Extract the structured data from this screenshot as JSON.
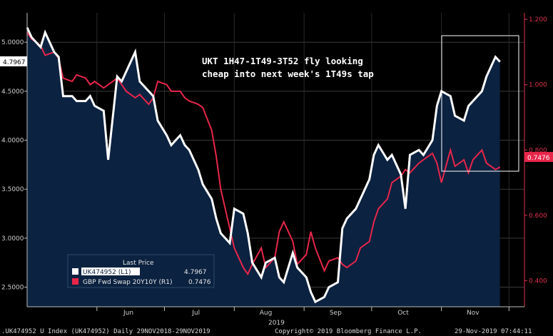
{
  "chart_data": {
    "type": "line",
    "x_ticks": [
      "Jun",
      "Jul",
      "Aug",
      "Sep",
      "Oct",
      "Nov"
    ],
    "x_year": "2019",
    "y_left": {
      "ylim": [
        2.3,
        5.3
      ],
      "ticks": [
        "2.5000",
        "3.0000",
        "3.5000",
        "4.0000",
        "4.5000",
        "5.0000"
      ]
    },
    "y_right": {
      "ylim": [
        0.32,
        1.22
      ],
      "ticks": [
        "0.400",
        "0.600",
        "0.800",
        "1.000",
        "1.200"
      ]
    },
    "annotation": "UKT 1H47-1T49-3T52 fly looking cheap into next week's 1T49s tap",
    "legend": {
      "title": "Last Price"
    },
    "colors": {
      "series1": "#ffffff",
      "series2": "#e8264a",
      "area": "#0b2240",
      "background": "#000000"
    },
    "x": [
      "2019-05-01",
      "2019-05-03",
      "2019-05-07",
      "2019-05-09",
      "2019-05-13",
      "2019-05-15",
      "2019-05-17",
      "2019-05-21",
      "2019-05-23",
      "2019-05-27",
      "2019-05-29",
      "2019-05-31",
      "2019-06-04",
      "2019-06-06",
      "2019-06-10",
      "2019-06-12",
      "2019-06-14",
      "2019-06-18",
      "2019-06-20",
      "2019-06-24",
      "2019-06-26",
      "2019-06-28",
      "2019-07-02",
      "2019-07-04",
      "2019-07-08",
      "2019-07-10",
      "2019-07-12",
      "2019-07-16",
      "2019-07-18",
      "2019-07-22",
      "2019-07-24",
      "2019-07-26",
      "2019-07-30",
      "2019-08-01",
      "2019-08-05",
      "2019-08-07",
      "2019-08-09",
      "2019-08-13",
      "2019-08-15",
      "2019-08-19",
      "2019-08-21",
      "2019-08-23",
      "2019-08-27",
      "2019-08-29",
      "2019-09-02",
      "2019-09-04",
      "2019-09-06",
      "2019-09-10",
      "2019-09-12",
      "2019-09-16",
      "2019-09-18",
      "2019-09-20",
      "2019-09-24",
      "2019-09-26",
      "2019-09-30",
      "2019-10-02",
      "2019-10-04",
      "2019-10-08",
      "2019-10-10",
      "2019-10-14",
      "2019-10-16",
      "2019-10-18",
      "2019-10-22",
      "2019-10-24",
      "2019-10-28",
      "2019-10-30",
      "2019-11-01",
      "2019-11-05",
      "2019-11-07",
      "2019-11-11",
      "2019-11-13",
      "2019-11-15",
      "2019-11-19",
      "2019-11-21",
      "2019-11-25",
      "2019-11-27"
    ],
    "series": [
      {
        "name": "UK474952 (L1)",
        "axis": "left",
        "last_value": "4.7967",
        "values": [
          5.15,
          5.05,
          4.95,
          5.1,
          4.9,
          4.85,
          4.45,
          4.45,
          4.4,
          4.4,
          4.45,
          4.35,
          4.3,
          3.8,
          4.65,
          4.6,
          4.7,
          4.9,
          4.6,
          4.5,
          4.45,
          4.2,
          4.05,
          3.95,
          4.05,
          3.95,
          3.9,
          3.7,
          3.55,
          3.4,
          3.2,
          3.05,
          2.95,
          3.3,
          3.25,
          3.05,
          2.75,
          2.6,
          2.75,
          2.8,
          2.6,
          2.55,
          2.85,
          2.7,
          2.6,
          2.45,
          2.35,
          2.4,
          2.5,
          2.55,
          3.1,
          3.2,
          3.3,
          3.4,
          3.6,
          3.85,
          3.95,
          3.8,
          3.85,
          3.65,
          3.3,
          3.85,
          3.9,
          3.85,
          4.0,
          4.35,
          4.5,
          4.45,
          4.25,
          4.2,
          4.35,
          4.4,
          4.5,
          4.65,
          4.85,
          4.8
        ]
      },
      {
        "name": "GBP Fwd Swap 20Y10Y (R1)",
        "axis": "right",
        "last_value": "0.7476",
        "values": [
          1.16,
          1.14,
          1.12,
          1.09,
          1.1,
          1.08,
          1.02,
          1.01,
          1.03,
          1.02,
          1.0,
          1.01,
          0.99,
          1.0,
          1.02,
          1.0,
          0.98,
          0.96,
          0.97,
          0.94,
          0.96,
          1.01,
          1.0,
          0.98,
          0.98,
          0.96,
          0.95,
          0.94,
          0.93,
          0.86,
          0.78,
          0.68,
          0.56,
          0.5,
          0.44,
          0.42,
          0.45,
          0.5,
          0.44,
          0.47,
          0.55,
          0.58,
          0.52,
          0.45,
          0.48,
          0.55,
          0.5,
          0.43,
          0.46,
          0.47,
          0.45,
          0.44,
          0.46,
          0.5,
          0.52,
          0.58,
          0.62,
          0.65,
          0.7,
          0.72,
          0.74,
          0.73,
          0.76,
          0.77,
          0.79,
          0.76,
          0.7,
          0.8,
          0.75,
          0.77,
          0.73,
          0.77,
          0.8,
          0.76,
          0.74,
          0.7476
        ]
      }
    ]
  },
  "footer": {
    "left": ".UK474952 U Index (UK474952)  Daily 29NOV2018-29NOV2019",
    "center": "Copyright© 2019 Bloomberg Finance L.P.",
    "right": "29-Nov-2019 07:44:11"
  }
}
